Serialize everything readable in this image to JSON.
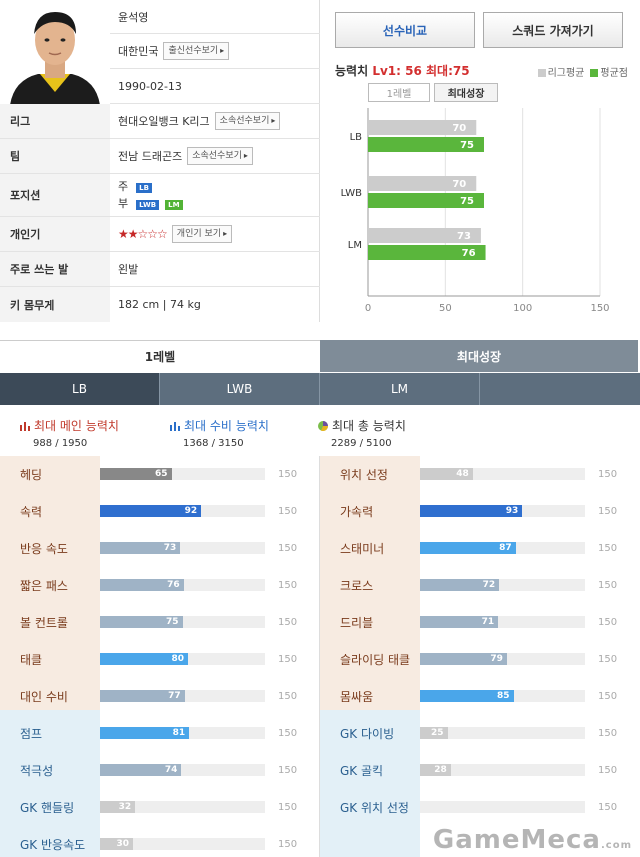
{
  "profile": {
    "name": "윤석영",
    "country": "대한민국",
    "country_btn": "출신선수보기",
    "birth": "1990-02-13",
    "rows": [
      {
        "label": "리그",
        "value": "현대오일뱅크 K리그",
        "btn": "소속선수보기"
      },
      {
        "label": "팀",
        "value": "전남 드래곤즈",
        "btn": "소속선수보기"
      },
      {
        "label": "포지션",
        "main_label": "주",
        "sub_label": "부",
        "main_pos": "LB",
        "sub_pos": [
          "LWB",
          "LM"
        ]
      },
      {
        "label": "개인기",
        "stars": "★★☆☆☆",
        "btn": "개인기 보기"
      },
      {
        "label": "주로 쓰는 발",
        "value": "왼발"
      },
      {
        "label": "키 몸무게",
        "value": "182 cm | 74 kg"
      }
    ]
  },
  "panel": {
    "compare_btn": "선수비교",
    "squad_btn": "스쿼드 가져가기",
    "ability_label": "능력치",
    "ability_value": "Lv1: 56 최대:75",
    "legend_league": "리그평균",
    "legend_avg": "평균점",
    "tab_lvl1": "1레벨",
    "tab_max": "최대성장",
    "colors": {
      "league": "#cccccc",
      "avg": "#5ab63c"
    }
  },
  "chart_data": {
    "type": "bar",
    "orientation": "horizontal",
    "categories": [
      "LB",
      "LWB",
      "LM"
    ],
    "series": [
      {
        "name": "리그평균",
        "values": [
          70,
          70,
          73
        ]
      },
      {
        "name": "평균점",
        "values": [
          75,
          75,
          76
        ]
      }
    ],
    "xlim": [
      0,
      150
    ],
    "xticks": [
      "0",
      "50",
      "100",
      "150"
    ],
    "grid": true
  },
  "levels": {
    "lvl1": "1레벨",
    "max": "최대성장"
  },
  "positions": [
    "LB",
    "LWB",
    "LM"
  ],
  "summary": [
    {
      "title": "최대 메인 능력치",
      "value": "988 / 1950",
      "icon": "bar-chart-icon",
      "color": "#c0392b"
    },
    {
      "title": "최대 수비 능력치",
      "value": "1368 / 3150",
      "icon": "bar-chart-blue-icon",
      "color": "#2a6fc9"
    },
    {
      "title": "최대 총 능력치",
      "value": "2289 / 5100",
      "icon": "pie-chart-icon",
      "color": "#6b4ea0"
    }
  ],
  "stat_max": 150,
  "stats_left": [
    {
      "name": "헤딩",
      "value": 65,
      "color": "#888888"
    },
    {
      "name": "속력",
      "value": 92,
      "color": "#2f6fcf"
    },
    {
      "name": "반응 속도",
      "value": 73,
      "color": "#9fb3c6"
    },
    {
      "name": "짧은 패스",
      "value": 76,
      "color": "#9fb3c6"
    },
    {
      "name": "볼 컨트롤",
      "value": 75,
      "color": "#9fb3c6"
    },
    {
      "name": "태클",
      "value": 80,
      "color": "#4aa6ea"
    },
    {
      "name": "대인 수비",
      "value": 77,
      "color": "#9fb3c6"
    },
    {
      "name": "점프",
      "value": 81,
      "color": "#4aa6ea"
    },
    {
      "name": "적극성",
      "value": 74,
      "color": "#9fb3c6"
    },
    {
      "name": "GK 핸들링",
      "value": 32,
      "color": "#cccccc"
    },
    {
      "name": "GK 반응속도",
      "value": 30,
      "color": "#cccccc"
    }
  ],
  "stats_right": [
    {
      "name": "위치 선정",
      "value": 48,
      "color": "#cccccc"
    },
    {
      "name": "가속력",
      "value": 93,
      "color": "#2f6fcf"
    },
    {
      "name": "스태미너",
      "value": 87,
      "color": "#4aa6ea"
    },
    {
      "name": "크로스",
      "value": 72,
      "color": "#9fb3c6"
    },
    {
      "name": "드리블",
      "value": 71,
      "color": "#9fb3c6"
    },
    {
      "name": "슬라이딩 태클",
      "value": 79,
      "color": "#9fb3c6"
    },
    {
      "name": "몸싸움",
      "value": 85,
      "color": "#4aa6ea"
    },
    {
      "name": "GK 다이빙",
      "value": 25,
      "color": "#cccccc"
    },
    {
      "name": "GK 골킥",
      "value": 28,
      "color": "#cccccc"
    },
    {
      "name": "GK 위치 선정",
      "value": null,
      "color": "#cccccc"
    }
  ],
  "watermark": "GameMeca",
  "watermark_suffix": ".com"
}
